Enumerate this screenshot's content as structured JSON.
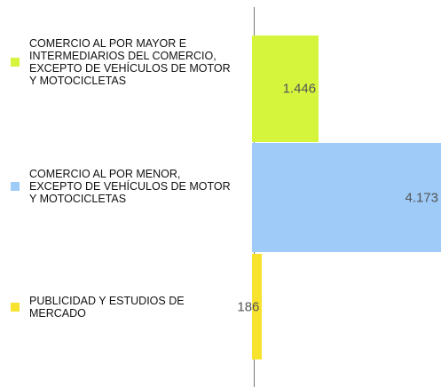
{
  "chart_data": {
    "type": "bar",
    "orientation": "horizontal",
    "categories": [
      "COMERCIO AL POR MAYOR E INTERMEDIARIOS DEL COMERCIO, EXCEPTO DE VEHÍCULOS DE MOTOR Y MOTOCICLETAS",
      "COMERCIO AL POR MENOR, EXCEPTO DE VEHÍCULOS DE MOTOR Y MOTOCICLETAS",
      "PUBLICIDAD Y ESTUDIOS DE MERCADO"
    ],
    "values": [
      1446,
      4173,
      186
    ],
    "value_labels": [
      "1.446",
      "4.173",
      "186"
    ],
    "colors": [
      "#d4f53c",
      "#9ecbf8",
      "#f7e22e"
    ],
    "legend": "left"
  }
}
